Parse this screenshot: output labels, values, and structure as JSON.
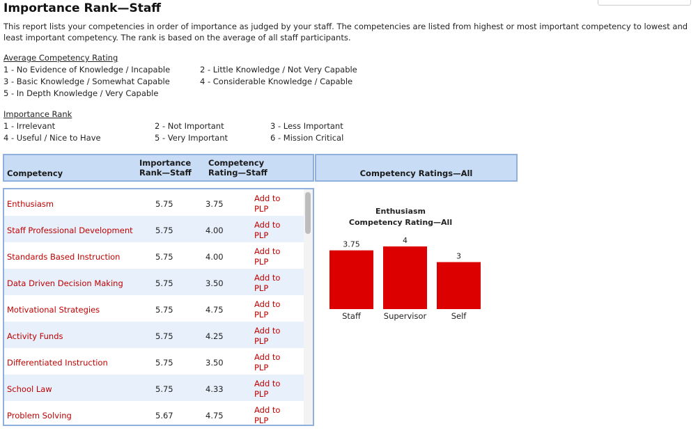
{
  "page": {
    "title": "Importance Rank—Staff",
    "intro": "This report lists your competencies in order of importance as judged by your staff. The competencies are listed from highest or most important competency to lowest and least important competency. The rank is based on the average of all staff participants."
  },
  "legend_rating": {
    "heading": "Average Competency Rating",
    "items": [
      "1 - No Evidence of Knowledge / Incapable",
      "2 - Little Knowledge / Not Very Capable",
      "3 - Basic Knowledge / Somewhat Capable",
      "4 - Considerable Knowledge / Capable",
      "5 - In Depth Knowledge / Very Capable"
    ]
  },
  "legend_rank": {
    "heading": "Importance Rank",
    "items": [
      "1 - Irrelevant",
      "2 - Not Important",
      "3 - Less Important",
      "4 - Useful / Nice to Have",
      "5 - Very Important",
      "6 - Mission Critical"
    ]
  },
  "table": {
    "headers": {
      "competency": "Competency",
      "rank_line1": "Importance",
      "rank_line2": "Rank—Staff",
      "rating_line1": "Competency",
      "rating_line2": "Rating—Staff",
      "all": "Competency Ratings—All"
    },
    "plp_line1": "Add to",
    "plp_line2": "PLP",
    "rows": [
      {
        "name": "Enthusiasm",
        "rank": "5.75",
        "rating": "3.75"
      },
      {
        "name": "Staff Professional Development",
        "rank": "5.75",
        "rating": "4.00"
      },
      {
        "name": "Standards Based Instruction",
        "rank": "5.75",
        "rating": "4.00"
      },
      {
        "name": "Data Driven Decision Making",
        "rank": "5.75",
        "rating": "3.50"
      },
      {
        "name": "Motivational Strategies",
        "rank": "5.75",
        "rating": "4.75"
      },
      {
        "name": "Activity Funds",
        "rank": "5.75",
        "rating": "4.25"
      },
      {
        "name": "Differentiated Instruction",
        "rank": "5.75",
        "rating": "3.50"
      },
      {
        "name": "School Law",
        "rank": "5.75",
        "rating": "4.33"
      },
      {
        "name": "Problem Solving",
        "rank": "5.67",
        "rating": "4.75"
      }
    ]
  },
  "chart": {
    "title_line1": "Enthusiasm",
    "title_line2": "Competency Rating—All",
    "bar_color": "#dd0000",
    "categories": [
      "Staff",
      "Supervisor",
      "Self"
    ],
    "values": [
      3.75,
      4,
      3
    ],
    "value_labels": [
      "3.75",
      "4",
      "3"
    ]
  }
}
